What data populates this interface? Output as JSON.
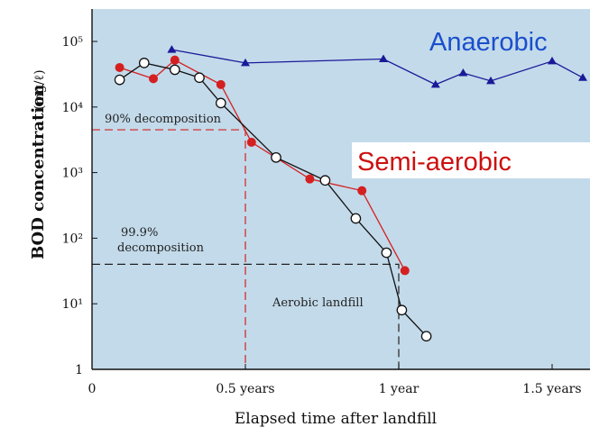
{
  "chart_data": {
    "type": "line",
    "xlabel": "Elapsed time after landfill",
    "ylabel": "BOD concentration",
    "ylabel_unit": "(mg/ℓ)",
    "y_scale": "log",
    "xlim": [
      0,
      1.6
    ],
    "ylim": [
      1,
      100000
    ],
    "grid": false,
    "x_ticks": [
      {
        "value": 0,
        "label": "0"
      },
      {
        "value": 0.5,
        "label": "0.5 years"
      },
      {
        "value": 1,
        "label": "1 year"
      },
      {
        "value": 1.5,
        "label": "1.5 years"
      }
    ],
    "y_ticks": [
      {
        "value": 1,
        "label": "1"
      },
      {
        "value": 10,
        "label": "10¹"
      },
      {
        "value": 100,
        "label": "10²"
      },
      {
        "value": 1000,
        "label": "10³"
      },
      {
        "value": 10000,
        "label": "10⁴"
      },
      {
        "value": 100000,
        "label": "10⁵"
      }
    ],
    "series": [
      {
        "name": "Anaerobic",
        "color": "#1a1a99",
        "marker": "triangle",
        "x": [
          0.26,
          0.5,
          0.95,
          1.12,
          1.21,
          1.3,
          1.5,
          1.6
        ],
        "y": [
          75000,
          47000,
          54000,
          22000,
          33000,
          25000,
          50000,
          28000
        ]
      },
      {
        "name": "Semi-aerobic",
        "color": "#d42020",
        "marker": "filled-circle",
        "x": [
          0.09,
          0.2,
          0.27,
          0.42,
          0.52,
          0.71,
          0.88,
          1.02
        ],
        "y": [
          40000,
          27000,
          52000,
          22000,
          2900,
          800,
          530,
          32
        ]
      },
      {
        "name": "Aerobic landfill",
        "color": "#111111",
        "marker": "open-circle",
        "x": [
          0.09,
          0.17,
          0.27,
          0.35,
          0.42,
          0.6,
          0.76,
          0.86,
          0.96,
          1.01,
          1.09
        ],
        "y": [
          26000,
          47000,
          37000,
          28000,
          11500,
          1700,
          760,
          200,
          60,
          8,
          3.2
        ]
      }
    ],
    "annotations": [
      {
        "text": "90% decomposition",
        "x": 0.5,
        "y": 4500,
        "color": "#d42020"
      },
      {
        "text": "99.9%",
        "x": 0.5,
        "y": 40,
        "color": "#222222"
      },
      {
        "text": "decomposition",
        "x": 0.5,
        "y": 40,
        "color": "#222222"
      }
    ],
    "series_labels": [
      {
        "text": "Anaerobic",
        "color": "#1a4fcc"
      },
      {
        "text": "Semi-aerobic",
        "color": "#cc1010"
      },
      {
        "text": "Aerobic landfill",
        "color": "#222222"
      }
    ]
  },
  "colors": {
    "plot_background": "#c3daea",
    "semi_aerobic_label_bg": "#ffffff"
  }
}
